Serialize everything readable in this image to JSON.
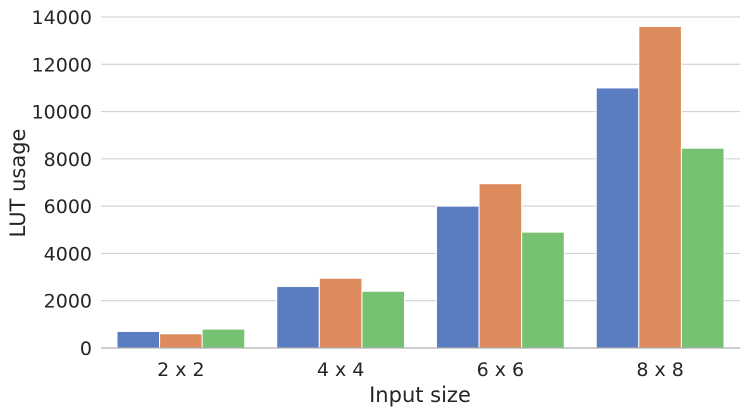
{
  "chart_data": {
    "type": "bar",
    "xlabel": "Input size",
    "ylabel": "LUT usage",
    "categories": [
      "2 x 2",
      "4 x 4",
      "6 x 6",
      "8 x 8"
    ],
    "ylim": [
      0,
      14000
    ],
    "yticks": [
      0,
      2000,
      4000,
      6000,
      8000,
      10000,
      12000,
      14000
    ],
    "grid": "horizontal",
    "legend": "none",
    "series": [
      {
        "values": [
          700,
          2600,
          6000,
          11000
        ],
        "color": "#5a7dc2"
      },
      {
        "values": [
          600,
          2950,
          6950,
          13600
        ],
        "color": "#dd8b5d"
      },
      {
        "values": [
          800,
          2400,
          4900,
          8450
        ],
        "color": "#77c172"
      }
    ]
  }
}
